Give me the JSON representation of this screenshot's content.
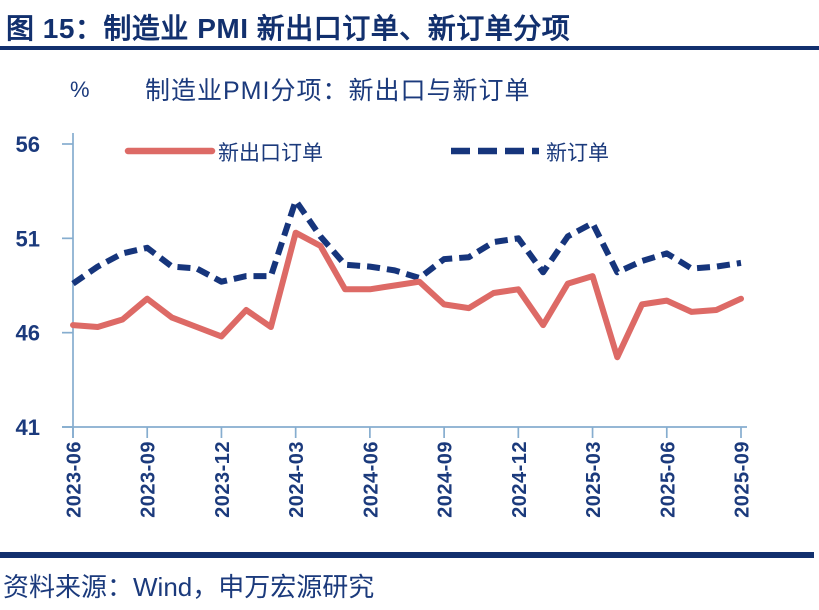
{
  "figure": {
    "caption": "图 15：制造业 PMI 新出口订单、新订单分项",
    "source": "资料来源：Wind，申万宏源研究"
  },
  "chart": {
    "title": "制造业PMI分项：新出口与新订单",
    "unit_label": "%"
  },
  "colors": {
    "caption_navy": "#12306E",
    "navy_text": "#1B3A7C",
    "line_red": "#DD6A66",
    "line_navy": "#16357C",
    "axis_blue": "#86ADCF"
  },
  "chart_data": {
    "type": "line",
    "title": "制造业PMI分项：新出口与新订单",
    "xlabel": "",
    "ylabel": "%",
    "ylim": [
      41,
      56
    ],
    "y_ticks": [
      56,
      51,
      46,
      41
    ],
    "grid": false,
    "legend_position": "top",
    "x": [
      "2023-06",
      "2023-07",
      "2023-08",
      "2023-09",
      "2023-10",
      "2023-11",
      "2023-12",
      "2024-01",
      "2024-02",
      "2024-03",
      "2024-04",
      "2024-05",
      "2024-06",
      "2024-07",
      "2024-08",
      "2024-09",
      "2024-10",
      "2024-11",
      "2024-12",
      "2025-01",
      "2025-02",
      "2025-03",
      "2025-04",
      "2025-05",
      "2025-06",
      "2025-07",
      "2025-08",
      "2025-09"
    ],
    "x_tick_labels": [
      "2023-06",
      "2023-09",
      "2023-12",
      "2024-03",
      "2024-06",
      "2024-09",
      "2024-12",
      "2025-03",
      "2025-06",
      "2025-09"
    ],
    "series": [
      {
        "name": "新出口订单",
        "style": "solid",
        "color": "#DD6A66",
        "values": [
          46.4,
          46.3,
          46.7,
          47.8,
          46.8,
          46.3,
          45.8,
          47.2,
          46.3,
          51.3,
          50.6,
          48.3,
          48.3,
          48.5,
          48.7,
          47.5,
          47.3,
          48.1,
          48.3,
          46.4,
          48.6,
          49.0,
          44.7,
          47.5,
          47.7,
          47.1,
          47.2,
          47.8
        ]
      },
      {
        "name": "新订单",
        "style": "dashed",
        "color": "#16357C",
        "values": [
          48.6,
          49.5,
          50.2,
          50.5,
          49.5,
          49.4,
          48.7,
          49.0,
          49.0,
          53.0,
          51.1,
          49.6,
          49.5,
          49.3,
          48.9,
          49.9,
          50.0,
          50.8,
          51.0,
          49.2,
          51.1,
          51.8,
          49.2,
          49.8,
          50.2,
          49.4,
          49.5,
          49.7
        ]
      }
    ]
  }
}
